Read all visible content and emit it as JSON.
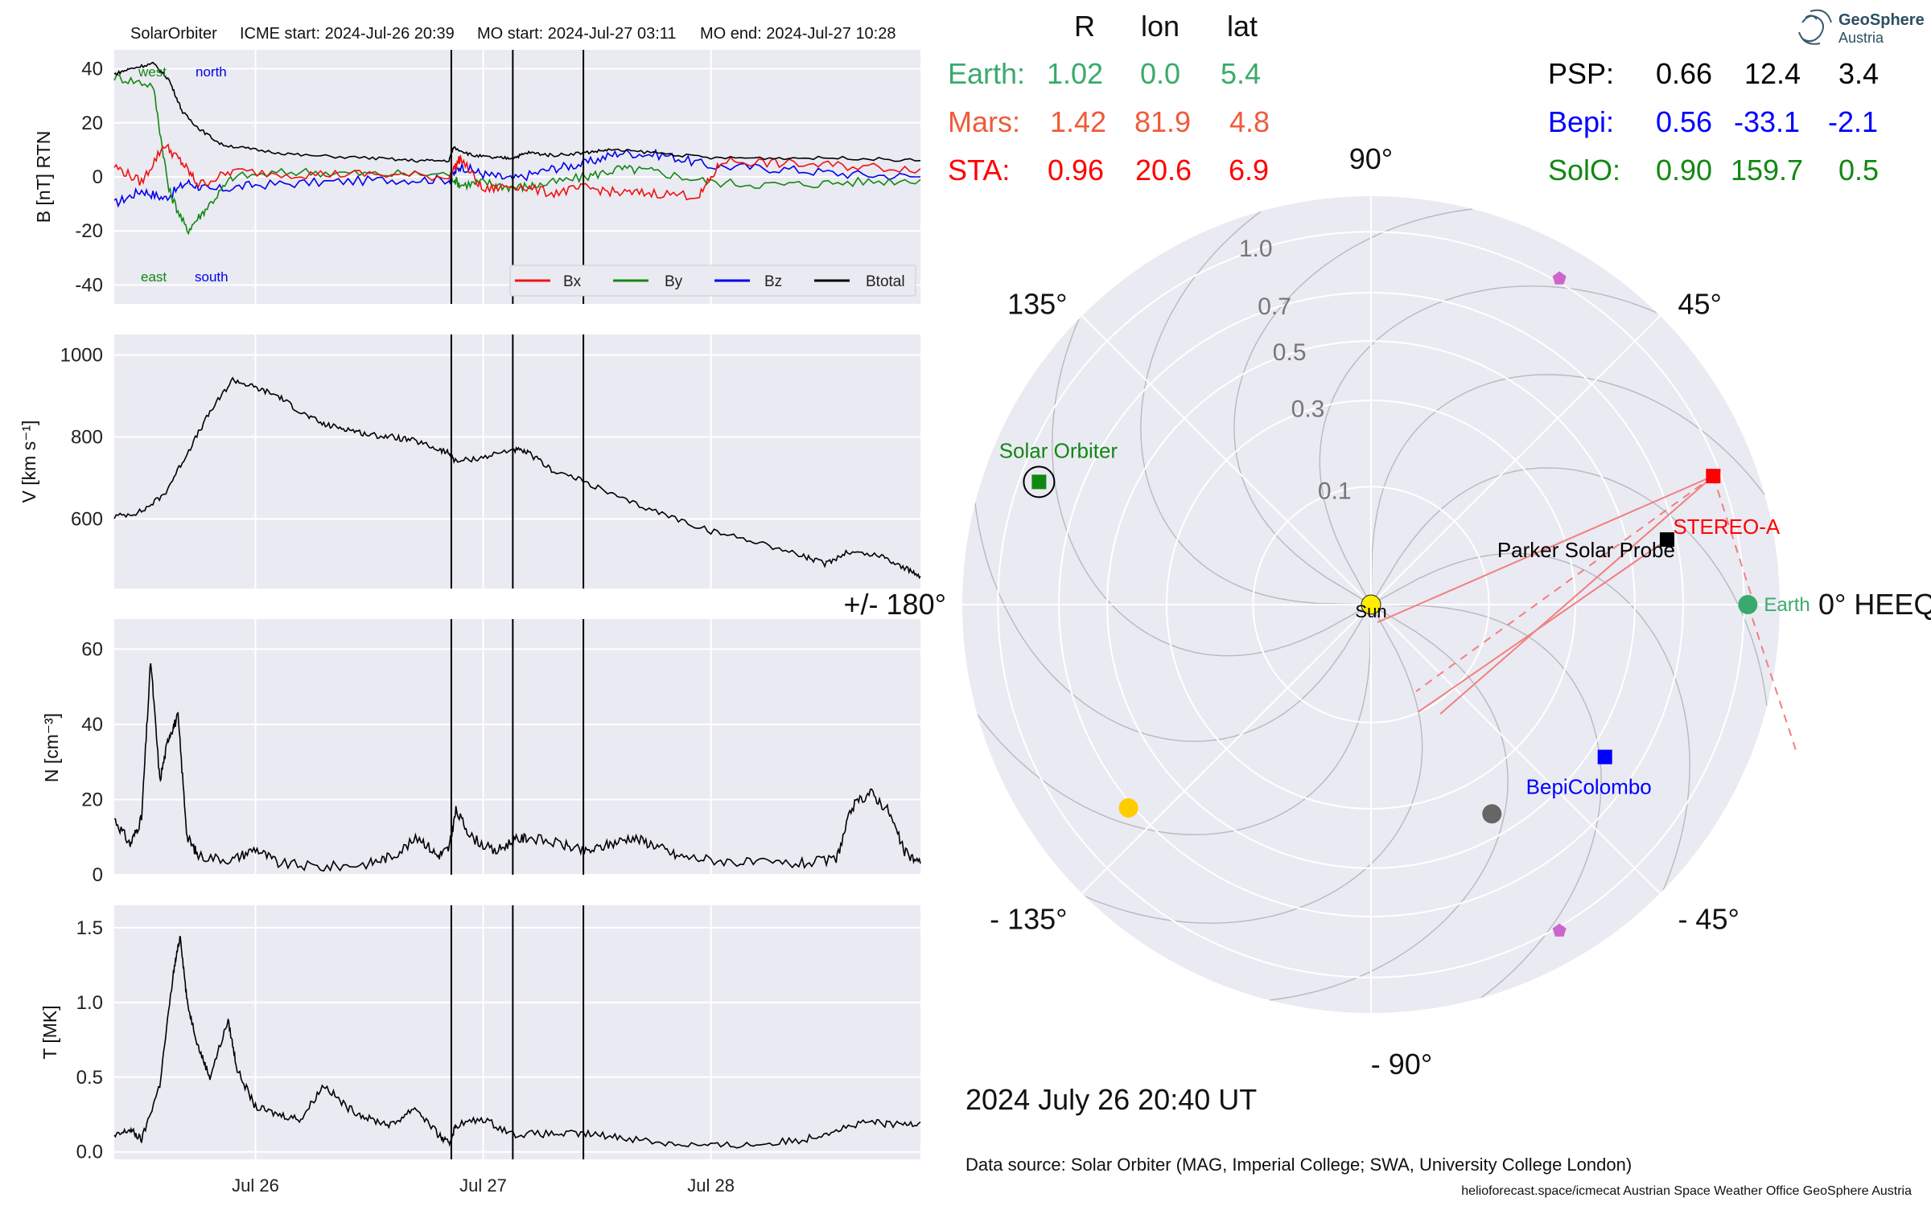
{
  "header": {
    "spacecraft": "SolarOrbiter",
    "icme_start": "ICME start: 2024-Jul-26 20:39",
    "mo_start": "MO start: 2024-Jul-27 03:11",
    "mo_end": "MO end: 2024-Jul-27 10:28"
  },
  "positions": {
    "col_headers": [
      "R",
      "lon",
      "lat"
    ],
    "rows": [
      {
        "name": "Earth:",
        "r": "1.02",
        "lon": "0.0",
        "lat": "5.4",
        "color": "#3aaa6c"
      },
      {
        "name": "Mars:",
        "r": "1.42",
        "lon": "81.9",
        "lat": "4.8",
        "color": "#f05a3a"
      },
      {
        "name": "STA:",
        "r": "0.96",
        "lon": "20.6",
        "lat": "6.9",
        "color": "#ff0000"
      },
      {
        "name": "PSP:",
        "r": "0.66",
        "lon": "12.4",
        "lat": "3.4",
        "color": "#000000"
      },
      {
        "name": "Bepi:",
        "r": "0.56",
        "lon": "-33.1",
        "lat": "-2.1",
        "color": "#0000ff"
      },
      {
        "name": "SolO:",
        "r": "0.90",
        "lon": "159.7",
        "lat": "0.5",
        "color": "#118811"
      }
    ]
  },
  "logo": {
    "line1": "GeoSphere",
    "line2": "Austria"
  },
  "date_text": "2024 July 26  20:40 UT",
  "data_source": "Data source: Solar Orbiter (MAG, Imperial College; SWA, University College London)",
  "footer": "helioforecast.space/icmecat   Austrian Space Weather Office   GeoSphere Austria",
  "colors": {
    "panel_bg": "#eaeaf2",
    "bx": "#ee1111",
    "by": "#118811",
    "bz": "#0000ee",
    "btotal": "#000000"
  },
  "chart_data": [
    {
      "type": "line",
      "id": "mag",
      "ylabel": "B [nT] RTN",
      "ylim": [
        -47,
        47
      ],
      "yticks": [
        -40,
        -20,
        0,
        20,
        40
      ],
      "xlim": [
        -0.62,
        2.92
      ],
      "x_unit": "days since 2024-Jul-26 00:00",
      "annotations": {
        "west": "west",
        "north": "north",
        "east": "east",
        "south": "south"
      },
      "legend": {
        "placement": "lower right",
        "entries": [
          "Bx",
          "By",
          "Bz",
          "Btotal"
        ]
      },
      "event_lines_days": [
        0.86,
        1.13,
        1.44
      ],
      "series": [
        {
          "name": "Btotal",
          "points": [
            [
              -0.62,
              38
            ],
            [
              -0.55,
              40
            ],
            [
              -0.45,
              42
            ],
            [
              -0.38,
              36
            ],
            [
              -0.32,
              24
            ],
            [
              -0.25,
              18
            ],
            [
              -0.15,
              12
            ],
            [
              0.0,
              10
            ],
            [
              0.2,
              8
            ],
            [
              0.5,
              7
            ],
            [
              0.7,
              6
            ],
            [
              0.85,
              6
            ],
            [
              0.87,
              11
            ],
            [
              0.95,
              8
            ],
            [
              1.05,
              7
            ],
            [
              1.13,
              7
            ],
            [
              1.2,
              9
            ],
            [
              1.3,
              8
            ],
            [
              1.45,
              9
            ],
            [
              1.55,
              10
            ],
            [
              1.75,
              9
            ],
            [
              2.0,
              7
            ],
            [
              2.3,
              7
            ],
            [
              2.6,
              7
            ],
            [
              2.92,
              6
            ]
          ]
        },
        {
          "name": "Bx",
          "points": [
            [
              -0.62,
              4
            ],
            [
              -0.5,
              -2
            ],
            [
              -0.4,
              12
            ],
            [
              -0.32,
              5
            ],
            [
              -0.25,
              -3
            ],
            [
              -0.1,
              2
            ],
            [
              0.2,
              1
            ],
            [
              0.5,
              1
            ],
            [
              0.85,
              0
            ],
            [
              0.9,
              7
            ],
            [
              1.0,
              -5
            ],
            [
              1.13,
              -3
            ],
            [
              1.3,
              -6
            ],
            [
              1.45,
              -4
            ],
            [
              1.6,
              -6
            ],
            [
              1.75,
              -6
            ],
            [
              1.95,
              -7
            ],
            [
              2.05,
              6
            ],
            [
              2.3,
              5
            ],
            [
              2.6,
              4
            ],
            [
              2.92,
              3
            ]
          ]
        },
        {
          "name": "By",
          "points": [
            [
              -0.62,
              37
            ],
            [
              -0.45,
              34
            ],
            [
              -0.38,
              -5
            ],
            [
              -0.3,
              -20
            ],
            [
              -0.22,
              -12
            ],
            [
              -0.1,
              0
            ],
            [
              0.2,
              2
            ],
            [
              0.5,
              1
            ],
            [
              0.85,
              1
            ],
            [
              0.9,
              -3
            ],
            [
              1.0,
              -2
            ],
            [
              1.13,
              -4
            ],
            [
              1.25,
              -3
            ],
            [
              1.45,
              0
            ],
            [
              1.6,
              3
            ],
            [
              1.75,
              2
            ],
            [
              2.0,
              -2
            ],
            [
              2.3,
              -3
            ],
            [
              2.6,
              -2
            ],
            [
              2.92,
              -1
            ]
          ]
        },
        {
          "name": "Bz",
          "points": [
            [
              -0.62,
              -10
            ],
            [
              -0.5,
              -5
            ],
            [
              -0.4,
              -8
            ],
            [
              -0.3,
              -2
            ],
            [
              -0.2,
              -5
            ],
            [
              0.0,
              -3
            ],
            [
              0.3,
              -2
            ],
            [
              0.6,
              -1
            ],
            [
              0.85,
              -1
            ],
            [
              0.9,
              4
            ],
            [
              1.0,
              1
            ],
            [
              1.13,
              -1
            ],
            [
              1.3,
              3
            ],
            [
              1.45,
              5
            ],
            [
              1.6,
              9
            ],
            [
              1.8,
              8
            ],
            [
              2.0,
              4
            ],
            [
              2.3,
              3
            ],
            [
              2.6,
              1
            ],
            [
              2.92,
              0
            ]
          ]
        }
      ]
    },
    {
      "type": "line",
      "id": "speed",
      "ylabel": "V [km s⁻¹]",
      "ylim": [
        430,
        1050
      ],
      "yticks": [
        600,
        800,
        1000
      ],
      "series": [
        {
          "name": "V",
          "points": [
            [
              -0.62,
              605
            ],
            [
              -0.5,
              618
            ],
            [
              -0.4,
              660
            ],
            [
              -0.3,
              760
            ],
            [
              -0.2,
              860
            ],
            [
              -0.1,
              940
            ],
            [
              0.0,
              920
            ],
            [
              0.1,
              900
            ],
            [
              0.2,
              860
            ],
            [
              0.3,
              830
            ],
            [
              0.4,
              820
            ],
            [
              0.5,
              805
            ],
            [
              0.6,
              800
            ],
            [
              0.7,
              790
            ],
            [
              0.8,
              770
            ],
            [
              0.85,
              760
            ],
            [
              0.88,
              740
            ],
            [
              1.0,
              750
            ],
            [
              1.13,
              770
            ],
            [
              1.2,
              760
            ],
            [
              1.3,
              720
            ],
            [
              1.45,
              690
            ],
            [
              1.6,
              650
            ],
            [
              1.8,
              610
            ],
            [
              2.0,
              570
            ],
            [
              2.2,
              545
            ],
            [
              2.4,
              510
            ],
            [
              2.5,
              490
            ],
            [
              2.6,
              520
            ],
            [
              2.75,
              510
            ],
            [
              2.85,
              480
            ],
            [
              2.92,
              460
            ]
          ]
        }
      ]
    },
    {
      "type": "line",
      "id": "density",
      "ylabel": "N [cm⁻³]",
      "ylim": [
        0,
        68
      ],
      "yticks": [
        0,
        20,
        40,
        60
      ],
      "series": [
        {
          "name": "N",
          "points": [
            [
              -0.62,
              15
            ],
            [
              -0.55,
              8
            ],
            [
              -0.5,
              15
            ],
            [
              -0.46,
              57
            ],
            [
              -0.42,
              25
            ],
            [
              -0.38,
              37
            ],
            [
              -0.34,
              42
            ],
            [
              -0.3,
              10
            ],
            [
              -0.25,
              5
            ],
            [
              -0.1,
              4
            ],
            [
              0.0,
              7
            ],
            [
              0.1,
              3
            ],
            [
              0.3,
              2
            ],
            [
              0.5,
              3
            ],
            [
              0.6,
              5
            ],
            [
              0.72,
              10
            ],
            [
              0.8,
              5
            ],
            [
              0.85,
              7
            ],
            [
              0.88,
              17
            ],
            [
              0.95,
              10
            ],
            [
              1.05,
              6
            ],
            [
              1.13,
              9
            ],
            [
              1.2,
              10
            ],
            [
              1.35,
              8
            ],
            [
              1.45,
              6
            ],
            [
              1.55,
              8
            ],
            [
              1.65,
              10
            ],
            [
              1.75,
              8
            ],
            [
              1.85,
              5
            ],
            [
              2.0,
              4
            ],
            [
              2.2,
              3
            ],
            [
              2.4,
              3
            ],
            [
              2.55,
              4
            ],
            [
              2.62,
              18
            ],
            [
              2.7,
              22
            ],
            [
              2.78,
              17
            ],
            [
              2.85,
              6
            ],
            [
              2.92,
              3
            ]
          ]
        }
      ]
    },
    {
      "type": "line",
      "id": "temperature",
      "ylabel": "T [MK]",
      "ylim": [
        -0.05,
        1.65
      ],
      "yticks": [
        0.0,
        0.5,
        1.0,
        1.5
      ],
      "xlim": [
        -0.62,
        2.92
      ],
      "xticks": [
        "Jul 26",
        "Jul 27",
        "Jul 28"
      ],
      "series": [
        {
          "name": "T",
          "points": [
            [
              -0.62,
              0.1
            ],
            [
              -0.55,
              0.15
            ],
            [
              -0.5,
              0.08
            ],
            [
              -0.42,
              0.45
            ],
            [
              -0.36,
              1.2
            ],
            [
              -0.33,
              1.45
            ],
            [
              -0.3,
              1.0
            ],
            [
              -0.25,
              0.7
            ],
            [
              -0.2,
              0.5
            ],
            [
              -0.12,
              0.88
            ],
            [
              -0.08,
              0.55
            ],
            [
              0.0,
              0.3
            ],
            [
              0.1,
              0.25
            ],
            [
              0.2,
              0.22
            ],
            [
              0.3,
              0.45
            ],
            [
              0.4,
              0.3
            ],
            [
              0.5,
              0.22
            ],
            [
              0.6,
              0.18
            ],
            [
              0.7,
              0.3
            ],
            [
              0.8,
              0.12
            ],
            [
              0.85,
              0.05
            ],
            [
              0.88,
              0.18
            ],
            [
              1.0,
              0.22
            ],
            [
              1.13,
              0.12
            ],
            [
              1.3,
              0.12
            ],
            [
              1.45,
              0.12
            ],
            [
              1.6,
              0.1
            ],
            [
              1.8,
              0.06
            ],
            [
              2.0,
              0.04
            ],
            [
              2.2,
              0.05
            ],
            [
              2.4,
              0.08
            ],
            [
              2.55,
              0.15
            ],
            [
              2.7,
              0.2
            ],
            [
              2.8,
              0.18
            ],
            [
              2.92,
              0.2
            ]
          ]
        }
      ]
    },
    {
      "type": "scatter",
      "id": "orbit",
      "projection": "polar",
      "rlim": [
        0,
        1.2
      ],
      "r_scale": "sqrt",
      "rticks": [
        "0.1",
        "0.3",
        "0.5",
        "0.7",
        "1.0"
      ],
      "angle_labels": [
        "0° HEEQ",
        "45°",
        "90°",
        "135°",
        "+/- 180°",
        "- 135°",
        "- 90°",
        "- 45°"
      ],
      "objects": [
        {
          "name": "Sun",
          "label": "Sun",
          "r": 0.0,
          "lon": 0,
          "marker": "circle",
          "color": "#ffee00"
        },
        {
          "name": "Earth",
          "label": "Earth",
          "r": 1.02,
          "lon": 0.0,
          "marker": "circle",
          "color": "#3aaa6c"
        },
        {
          "name": "STEREO-A",
          "label": "STEREO-A",
          "r": 0.96,
          "lon": 20.6,
          "marker": "square",
          "color": "#ff0000"
        },
        {
          "name": "Parker Solar Probe",
          "label": "Parker Solar Probe",
          "r": 0.66,
          "lon": 12.4,
          "marker": "square",
          "color": "#000000"
        },
        {
          "name": "BepiColombo",
          "label": "BepiColombo",
          "r": 0.56,
          "lon": -33.1,
          "marker": "square",
          "color": "#0000ff"
        },
        {
          "name": "Solar Orbiter",
          "label": "Solar Orbiter",
          "r": 0.9,
          "lon": 159.7,
          "marker": "square",
          "color": "#118811"
        },
        {
          "name": "Mercury",
          "label": "",
          "r": 0.42,
          "lon": -60,
          "marker": "circle",
          "color": "#666666"
        },
        {
          "name": "Venus",
          "label": "",
          "r": 0.72,
          "lon": -140,
          "marker": "circle",
          "color": "#ffcc00"
        },
        {
          "name": "L4",
          "label": "",
          "r": 1.02,
          "lon": 60,
          "marker": "pentagon",
          "color": "#cc66cc"
        },
        {
          "name": "L5",
          "label": "",
          "r": 1.02,
          "lon": -60,
          "marker": "pentagon",
          "color": "#cc66cc"
        }
      ]
    }
  ]
}
